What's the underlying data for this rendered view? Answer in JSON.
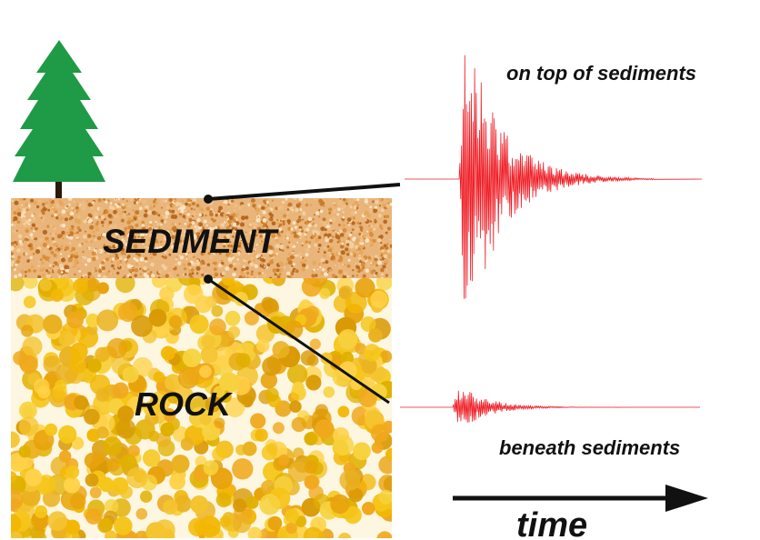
{
  "labels": {
    "sediment": "SEDIMENT",
    "rock": "ROCK",
    "top_trace": "on top of sediments",
    "bottom_trace": "beneath sediments",
    "time_axis": "time"
  },
  "colors": {
    "tree": "#1f9a46",
    "trunk": "#2a1a0a",
    "sediment_base": "#e9b57a",
    "rock_base": "#f3c43a",
    "waveform": "#ee1c24",
    "text": "#111111"
  },
  "icons": {
    "tree": "evergreen-tree-icon",
    "time_arrow": "arrow-right-icon"
  }
}
